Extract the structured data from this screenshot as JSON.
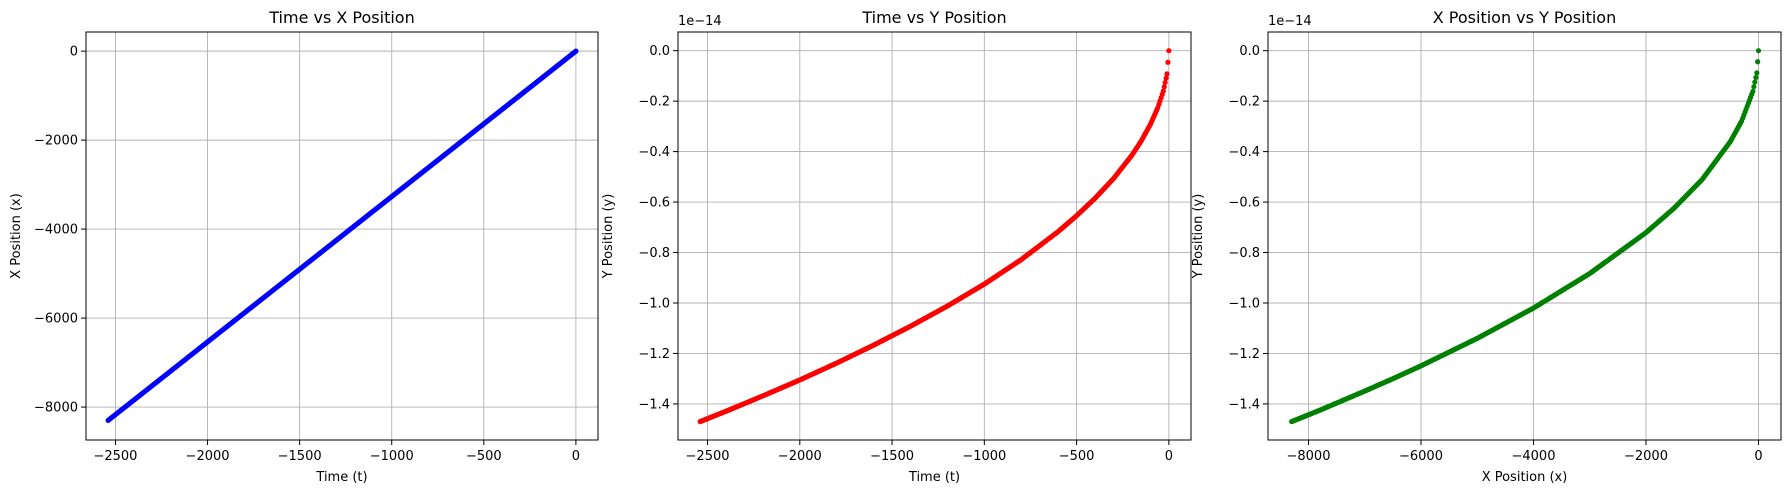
{
  "chart_data": [
    {
      "type": "scatter",
      "title": "Time vs X Position",
      "xlabel": "Time (t)",
      "ylabel": "X Position (x)",
      "color": "#0000ff",
      "xlim": [
        -2660,
        120
      ],
      "ylim": [
        -8740,
        430
      ],
      "xticks": [
        -2500,
        -2000,
        -1500,
        -1000,
        -500,
        0
      ],
      "xtick_labels": [
        "−2500",
        "−2000",
        "−1500",
        "−1000",
        "−500",
        "0"
      ],
      "yticks": [
        -8000,
        -6000,
        -4000,
        -2000,
        0
      ],
      "ytick_labels": [
        "−8000",
        "−6000",
        "−4000",
        "−2000",
        "0"
      ],
      "offset_label": "",
      "grid": true,
      "series": [
        {
          "x": [
            -2540,
            -2400,
            -2200,
            -2000,
            -1800,
            -1600,
            -1400,
            -1200,
            -1000,
            -800,
            -600,
            -400,
            -200,
            0
          ],
          "y": [
            -8300,
            -7842,
            -7189,
            -6535,
            -5882,
            -5228,
            -4575,
            -3921,
            -3268,
            -2614,
            -1961,
            -1307,
            -654,
            0
          ]
        }
      ]
    },
    {
      "type": "scatter",
      "title": "Time vs Y Position",
      "xlabel": "Time (t)",
      "ylabel": "Y Position (y)",
      "color": "#ff0000",
      "xlim": [
        -2660,
        120
      ],
      "ylim": [
        -1.543,
        0.074
      ],
      "xticks": [
        -2500,
        -2000,
        -1500,
        -1000,
        -500,
        0
      ],
      "xtick_labels": [
        "−2500",
        "−2000",
        "−1500",
        "−1000",
        "−500",
        "0"
      ],
      "yticks": [
        -1.4,
        -1.2,
        -1.0,
        -0.8,
        -0.6,
        -0.4,
        -0.2,
        0.0
      ],
      "ytick_labels": [
        "−1.4",
        "−1.2",
        "−1.0",
        "−0.8",
        "−0.6",
        "−0.4",
        "−0.2",
        "0.0"
      ],
      "offset_label": "1e−14",
      "grid": true,
      "series": [
        {
          "x": [
            -2540,
            -2400,
            -2200,
            -2000,
            -1800,
            -1600,
            -1400,
            -1200,
            -1000,
            -800,
            -600,
            -500,
            -400,
            -300,
            -200,
            -150,
            -100,
            -60,
            -30,
            -10,
            0
          ],
          "y": [
            -1.47,
            -1.429,
            -1.368,
            -1.305,
            -1.238,
            -1.167,
            -1.092,
            -1.012,
            -0.925,
            -0.828,
            -0.717,
            -0.654,
            -0.585,
            -0.507,
            -0.414,
            -0.358,
            -0.292,
            -0.226,
            -0.16,
            -0.092,
            0.0
          ]
        }
      ]
    },
    {
      "type": "scatter",
      "title": "X Position vs Y Position",
      "xlabel": "X Position (x)",
      "ylabel": "Y Position (y)",
      "color": "#008000",
      "xlim": [
        -8720,
        400
      ],
      "ylim": [
        -1.543,
        0.074
      ],
      "xticks": [
        -8000,
        -6000,
        -4000,
        -2000,
        0
      ],
      "xtick_labels": [
        "−8000",
        "−6000",
        "−4000",
        "−2000",
        "0"
      ],
      "yticks": [
        -1.4,
        -1.2,
        -1.0,
        -0.8,
        -0.6,
        -0.4,
        -0.2,
        0.0
      ],
      "ytick_labels": [
        "−1.4",
        "−1.2",
        "−1.0",
        "−0.8",
        "−0.6",
        "−0.4",
        "−0.2",
        "0.0"
      ],
      "offset_label": "1e−14",
      "grid": true,
      "series": [
        {
          "x": [
            -8300,
            -7800,
            -7000,
            -6500,
            -6000,
            -5000,
            -4000,
            -3000,
            -2000,
            -1500,
            -1000,
            -500,
            -300,
            -100,
            -30,
            0
          ],
          "y": [
            -1.47,
            -1.425,
            -1.349,
            -1.3,
            -1.249,
            -1.14,
            -1.02,
            -0.883,
            -0.721,
            -0.624,
            -0.51,
            -0.36,
            -0.279,
            -0.161,
            -0.088,
            0.0
          ]
        }
      ]
    }
  ]
}
